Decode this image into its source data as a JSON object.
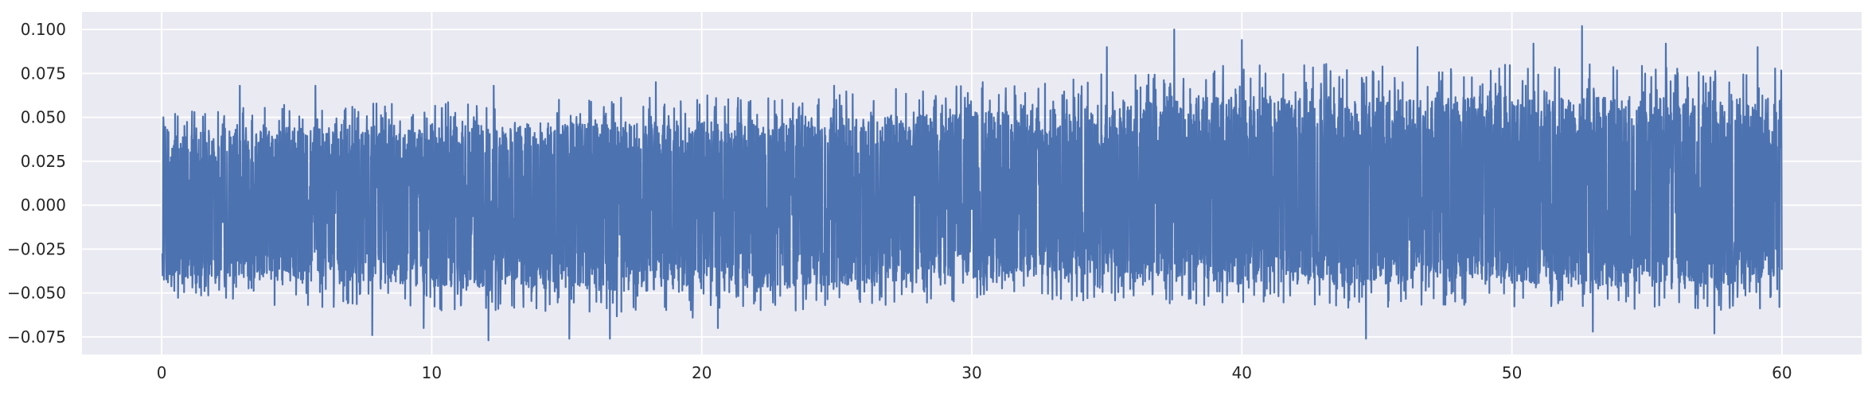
{
  "chart_data": {
    "type": "line",
    "title": "",
    "xlabel": "",
    "ylabel": "",
    "xlim": [
      -2.95,
      62.95
    ],
    "ylim": [
      -0.085,
      0.11
    ],
    "grid": true,
    "legend": "none",
    "colors": {
      "background": "#eaeaf2",
      "grid": "#ffffff",
      "series": "#4c72b0",
      "text": "#262626"
    },
    "x_ticks": [
      {
        "value": 0,
        "label": "0"
      },
      {
        "value": 10,
        "label": "10"
      },
      {
        "value": 20,
        "label": "20"
      },
      {
        "value": 30,
        "label": "30"
      },
      {
        "value": 40,
        "label": "40"
      },
      {
        "value": 50,
        "label": "50"
      },
      {
        "value": 60,
        "label": "60"
      }
    ],
    "y_ticks": [
      {
        "value": -0.075,
        "label": "−0.075"
      },
      {
        "value": -0.05,
        "label": "−0.050"
      },
      {
        "value": -0.025,
        "label": "−0.025"
      },
      {
        "value": 0.0,
        "label": "0.000"
      },
      {
        "value": 0.025,
        "label": "0.025"
      },
      {
        "value": 0.05,
        "label": "0.050"
      },
      {
        "value": 0.075,
        "label": "0.075"
      },
      {
        "value": 0.1,
        "label": "0.100"
      }
    ],
    "series": [
      {
        "x_range": [
          0,
          60
        ],
        "envelope": {
          "x": [
            0,
            5,
            10,
            15,
            20,
            25,
            30,
            35,
            40,
            45,
            50,
            55,
            60
          ],
          "upper": [
            0.04,
            0.045,
            0.045,
            0.047,
            0.048,
            0.05,
            0.053,
            0.058,
            0.062,
            0.062,
            0.062,
            0.062,
            0.06
          ],
          "lower": [
            -0.04,
            -0.045,
            -0.046,
            -0.048,
            -0.05,
            -0.045,
            -0.042,
            -0.042,
            -0.045,
            -0.045,
            -0.045,
            -0.047,
            -0.045
          ]
        },
        "peaks": [
          {
            "x": 0.2,
            "y": 0.028
          },
          {
            "x": 0.2,
            "y": -0.032
          },
          {
            "x": 0.5,
            "y": 0.052
          },
          {
            "x": 2.9,
            "y": 0.068
          },
          {
            "x": 5.7,
            "y": 0.068
          },
          {
            "x": 7.8,
            "y": -0.074
          },
          {
            "x": 9.7,
            "y": -0.07
          },
          {
            "x": 12.1,
            "y": -0.077
          },
          {
            "x": 12.3,
            "y": 0.068
          },
          {
            "x": 15.1,
            "y": -0.076
          },
          {
            "x": 16.6,
            "y": -0.076
          },
          {
            "x": 18.3,
            "y": 0.07
          },
          {
            "x": 20.6,
            "y": -0.07
          },
          {
            "x": 24.9,
            "y": 0.068
          },
          {
            "x": 30.4,
            "y": 0.07
          },
          {
            "x": 35.0,
            "y": 0.09
          },
          {
            "x": 37.5,
            "y": 0.1
          },
          {
            "x": 40.0,
            "y": 0.094
          },
          {
            "x": 44.6,
            "y": -0.076
          },
          {
            "x": 46.5,
            "y": 0.09
          },
          {
            "x": 50.8,
            "y": 0.092
          },
          {
            "x": 52.6,
            "y": 0.102
          },
          {
            "x": 53.0,
            "y": -0.072
          },
          {
            "x": 55.7,
            "y": 0.092
          },
          {
            "x": 57.5,
            "y": -0.073
          },
          {
            "x": 59.1,
            "y": 0.09
          },
          {
            "x": 59.9,
            "y": -0.058
          }
        ]
      }
    ]
  }
}
